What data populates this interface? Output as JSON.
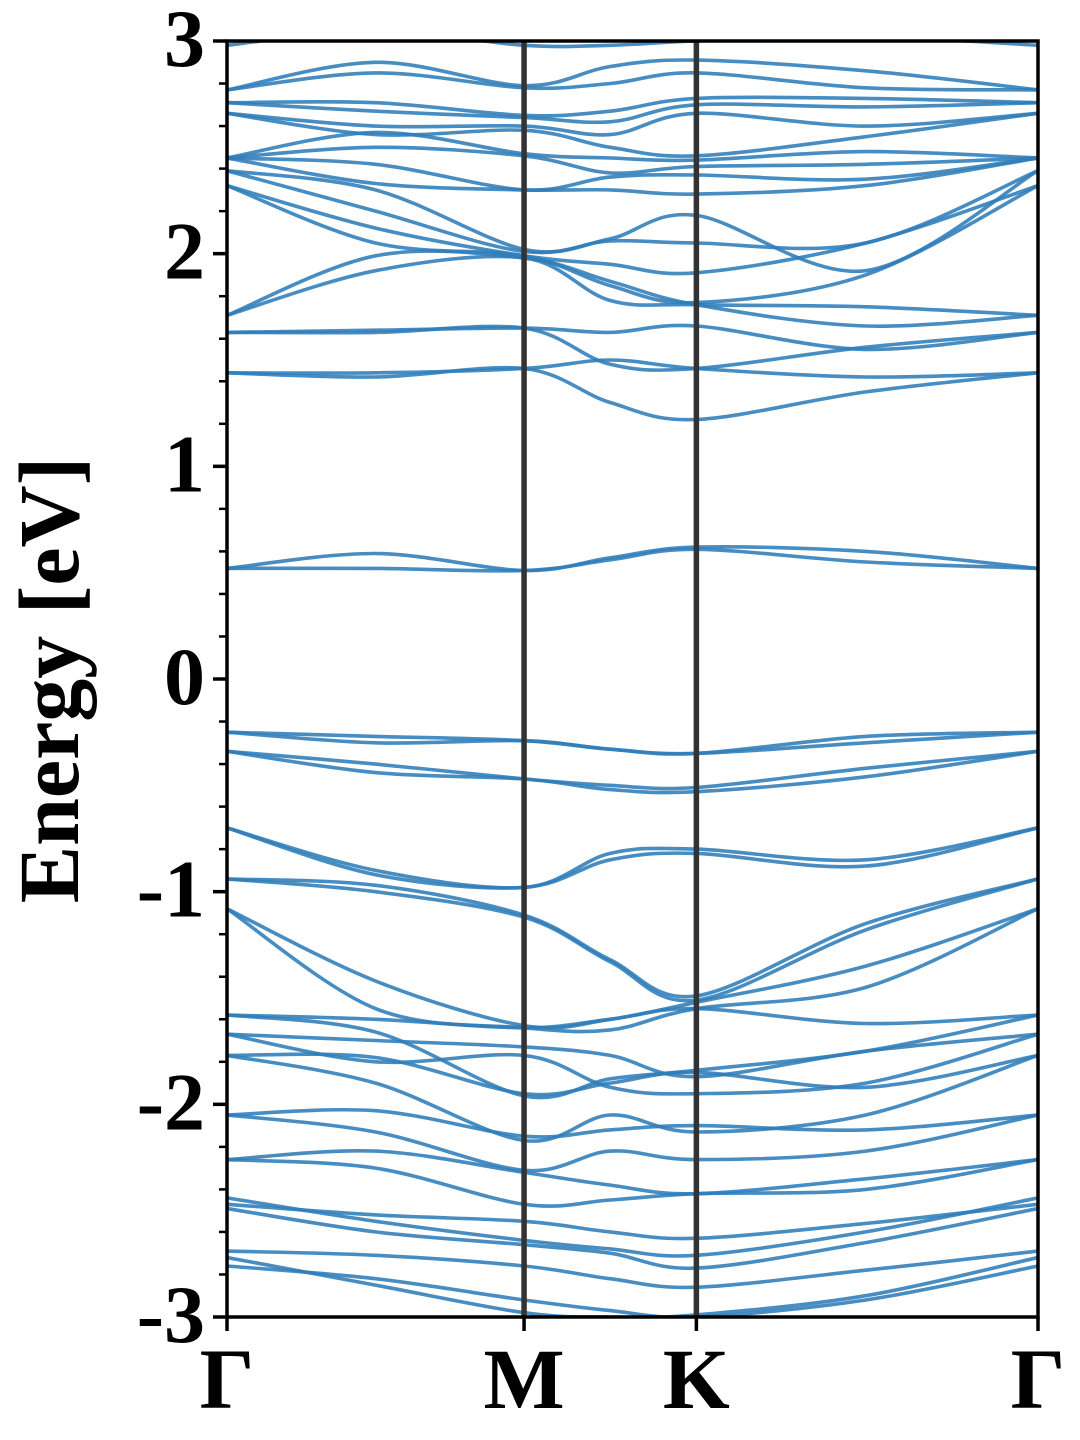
{
  "chart_data": {
    "type": "line",
    "title": "",
    "xlabel": "",
    "ylabel": "Energy [eV]",
    "ylim": [
      -3,
      3
    ],
    "xlim": [
      0,
      2.73
    ],
    "y_ticks": [
      "3",
      "2",
      "1",
      "0",
      "-1",
      "-2",
      "-3"
    ],
    "y_tick_values": [
      3,
      2,
      1,
      0,
      -1,
      -2,
      -3
    ],
    "y_minor_step": 0.2,
    "k_points": [
      {
        "label": "Γ",
        "x": 0
      },
      {
        "label": "M",
        "x": 1.0
      },
      {
        "label": "K",
        "x": 1.58
      },
      {
        "label": "Γ",
        "x": 2.73
      }
    ],
    "grid": false,
    "legend": "none",
    "colors": {
      "bands": "#2f7dba",
      "kpoint_lines": "#333333"
    },
    "x_nodes": [
      0,
      0.5,
      1.0,
      1.29,
      1.58,
      2.15,
      2.73
    ],
    "bands": [
      [
        -2.69,
        -2.71,
        -2.76,
        -2.82,
        -2.86,
        -2.78,
        -2.69
      ],
      [
        -2.76,
        -2.82,
        -2.92,
        -2.97,
        -3.0,
        -2.92,
        -2.76
      ],
      [
        -2.72,
        -2.85,
        -2.98,
        -3.0,
        -2.99,
        -2.9,
        -2.72
      ],
      [
        -2.44,
        -2.55,
        -2.64,
        -2.68,
        -2.71,
        -2.6,
        -2.44
      ],
      [
        -2.47,
        -2.52,
        -2.55,
        -2.6,
        -2.63,
        -2.56,
        -2.47
      ],
      [
        -2.49,
        -2.6,
        -2.66,
        -2.7,
        -2.77,
        -2.65,
        -2.49
      ],
      [
        -2.26,
        -2.22,
        -2.32,
        -2.38,
        -2.42,
        -2.35,
        -2.26
      ],
      [
        -2.26,
        -2.3,
        -2.47,
        -2.45,
        -2.42,
        -2.4,
        -2.26
      ],
      [
        -2.05,
        -2.03,
        -2.15,
        -2.12,
        -2.1,
        -2.12,
        -2.05
      ],
      [
        -2.05,
        -2.13,
        -2.31,
        -2.22,
        -2.26,
        -2.22,
        -2.05
      ],
      [
        -1.77,
        -1.78,
        -1.95,
        -1.9,
        -1.85,
        -1.92,
        -1.77
      ],
      [
        -1.77,
        -1.9,
        -2.17,
        -2.05,
        -2.13,
        -2.05,
        -1.77
      ],
      [
        -1.67,
        -1.7,
        -1.73,
        -1.77,
        -1.87,
        -1.75,
        -1.67
      ],
      [
        -1.67,
        -1.8,
        -1.77,
        -1.92,
        -1.95,
        -1.9,
        -1.67
      ],
      [
        -1.58,
        -1.6,
        -1.64,
        -1.6,
        -1.55,
        -1.62,
        -1.58
      ],
      [
        -1.58,
        -1.66,
        -1.96,
        -1.88,
        -1.84,
        -1.75,
        -1.58
      ],
      [
        -1.08,
        -1.42,
        -1.63,
        -1.6,
        -1.52,
        -1.35,
        -1.08
      ],
      [
        -1.08,
        -1.55,
        -1.64,
        -1.65,
        -1.55,
        -1.45,
        -1.08
      ],
      [
        -0.94,
        -0.97,
        -1.11,
        -1.32,
        -1.49,
        -1.15,
        -0.94
      ],
      [
        -0.94,
        -1.0,
        -1.12,
        -1.33,
        -1.51,
        -1.18,
        -0.94
      ],
      [
        -0.7,
        -0.9,
        -0.98,
        -0.82,
        -0.8,
        -0.85,
        -0.7
      ],
      [
        -0.7,
        -0.92,
        -0.98,
        -0.85,
        -0.82,
        -0.88,
        -0.7
      ],
      [
        -0.34,
        -0.4,
        -0.47,
        -0.5,
        -0.51,
        -0.42,
        -0.34
      ],
      [
        -0.34,
        -0.44,
        -0.47,
        -0.52,
        -0.53,
        -0.46,
        -0.34
      ],
      [
        -0.25,
        -0.27,
        -0.29,
        -0.33,
        -0.35,
        -0.27,
        -0.25
      ],
      [
        -0.25,
        -0.3,
        -0.29,
        -0.33,
        -0.35,
        -0.3,
        -0.25
      ],
      [
        0.52,
        0.59,
        0.51,
        0.57,
        0.62,
        0.6,
        0.52
      ],
      [
        0.52,
        0.52,
        0.51,
        0.56,
        0.61,
        0.55,
        0.52
      ],
      [
        1.44,
        1.42,
        1.46,
        1.3,
        1.22,
        1.35,
        1.44
      ],
      [
        1.44,
        1.44,
        1.46,
        1.5,
        1.46,
        1.42,
        1.44
      ],
      [
        1.63,
        1.63,
        1.65,
        1.48,
        1.46,
        1.56,
        1.63
      ],
      [
        1.63,
        1.64,
        1.65,
        1.63,
        1.66,
        1.55,
        1.63
      ],
      [
        1.71,
        1.99,
        1.98,
        1.87,
        1.76,
        1.66,
        1.71
      ],
      [
        1.71,
        1.92,
        1.98,
        1.78,
        1.76,
        1.75,
        1.71
      ],
      [
        2.32,
        2.05,
        1.99,
        1.85,
        1.77,
        1.9,
        2.32
      ],
      [
        2.32,
        2.12,
        1.99,
        1.95,
        1.91,
        2.05,
        2.32
      ],
      [
        2.39,
        2.2,
        2.01,
        2.07,
        2.18,
        1.92,
        2.39
      ],
      [
        2.39,
        2.3,
        2.02,
        2.06,
        2.05,
        2.05,
        2.39
      ],
      [
        2.45,
        2.33,
        2.3,
        2.3,
        2.28,
        2.32,
        2.45
      ],
      [
        2.45,
        2.42,
        2.3,
        2.36,
        2.37,
        2.35,
        2.45
      ],
      [
        2.45,
        2.5,
        2.46,
        2.38,
        2.41,
        2.42,
        2.45
      ],
      [
        2.45,
        2.57,
        2.47,
        2.45,
        2.44,
        2.48,
        2.45
      ],
      [
        2.66,
        2.56,
        2.58,
        2.5,
        2.46,
        2.55,
        2.66
      ],
      [
        2.66,
        2.6,
        2.6,
        2.56,
        2.66,
        2.6,
        2.66
      ],
      [
        2.71,
        2.67,
        2.64,
        2.62,
        2.7,
        2.69,
        2.71
      ],
      [
        2.71,
        2.71,
        2.65,
        2.67,
        2.73,
        2.73,
        2.71
      ],
      [
        2.77,
        2.85,
        2.78,
        2.8,
        2.85,
        2.78,
        2.77
      ],
      [
        2.77,
        2.9,
        2.79,
        2.88,
        2.91,
        2.86,
        2.77
      ],
      [
        2.98,
        3.05,
        2.98,
        2.98,
        3.0,
        3.02,
        2.98
      ]
    ]
  }
}
